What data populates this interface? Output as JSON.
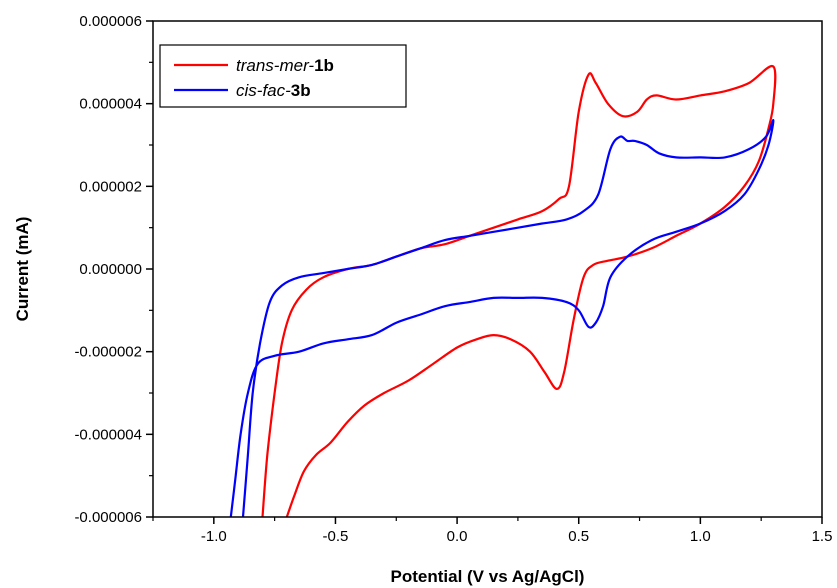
{
  "chart_data": {
    "type": "line",
    "title": "",
    "xlabel": "Potential (V vs Ag/AgCl)",
    "ylabel": "Current (mA)",
    "xlim": [
      -1.25,
      1.5
    ],
    "ylim": [
      -6e-06,
      6e-06
    ],
    "x_ticks": [
      -1.0,
      -0.5,
      0.0,
      0.5,
      1.0,
      1.5
    ],
    "x_tick_labels": [
      "-1.0",
      "-0.5",
      "0.0",
      "0.5",
      "1.0",
      "1.5"
    ],
    "y_ticks": [
      -6e-06,
      -4e-06,
      -2e-06,
      0.0,
      2e-06,
      4e-06,
      6e-06
    ],
    "y_tick_labels": [
      "-0.000006",
      "-0.000004",
      "-0.000002",
      "0.000000",
      "0.000002",
      "0.000004",
      "0.000006"
    ],
    "grid": false,
    "legend_position": "top-left",
    "series": [
      {
        "name_parts": [
          {
            "text": "trans-mer-",
            "style": "italic"
          },
          {
            "text": "1b",
            "style": "bold"
          }
        ],
        "color": "#ff0000",
        "points": [
          [
            -0.7,
            -6e-06
          ],
          [
            -0.67,
            -5.5e-06
          ],
          [
            -0.63,
            -4.9e-06
          ],
          [
            -0.58,
            -4.5e-06
          ],
          [
            -0.52,
            -4.2e-06
          ],
          [
            -0.45,
            -3.7e-06
          ],
          [
            -0.38,
            -3.3e-06
          ],
          [
            -0.3,
            -3e-06
          ],
          [
            -0.2,
            -2.7e-06
          ],
          [
            -0.1,
            -2.3e-06
          ],
          [
            0.0,
            -1.9e-06
          ],
          [
            0.08,
            -1.7e-06
          ],
          [
            0.15,
            -1.6e-06
          ],
          [
            0.22,
            -1.7e-06
          ],
          [
            0.3,
            -2e-06
          ],
          [
            0.36,
            -2.5e-06
          ],
          [
            0.41,
            -2.9e-06
          ],
          [
            0.44,
            -2.5e-06
          ],
          [
            0.48,
            -1.2e-06
          ],
          [
            0.52,
            -2e-07
          ],
          [
            0.56,
            1e-07
          ],
          [
            0.62,
            2e-07
          ],
          [
            0.7,
            3e-07
          ],
          [
            0.8,
            5e-07
          ],
          [
            0.9,
            8e-07
          ],
          [
            1.0,
            1.1e-06
          ],
          [
            1.1,
            1.5e-06
          ],
          [
            1.18,
            2e-06
          ],
          [
            1.24,
            2.6e-06
          ],
          [
            1.28,
            3.4e-06
          ],
          [
            1.3,
            4e-06
          ],
          [
            1.3,
            4.9e-06
          ],
          [
            1.2,
            4.5e-06
          ],
          [
            1.1,
            4.3e-06
          ],
          [
            1.0,
            4.2e-06
          ],
          [
            0.9,
            4.1e-06
          ],
          [
            0.82,
            4.2e-06
          ],
          [
            0.78,
            4.1e-06
          ],
          [
            0.74,
            3.8e-06
          ],
          [
            0.68,
            3.7e-06
          ],
          [
            0.62,
            4e-06
          ],
          [
            0.57,
            4.5e-06
          ],
          [
            0.54,
            4.7e-06
          ],
          [
            0.5,
            3.8e-06
          ],
          [
            0.46,
            2e-06
          ],
          [
            0.42,
            1.7e-06
          ],
          [
            0.35,
            1.4e-06
          ],
          [
            0.25,
            1.2e-06
          ],
          [
            0.15,
            1e-06
          ],
          [
            0.05,
            8e-07
          ],
          [
            -0.05,
            6e-07
          ],
          [
            -0.15,
            5e-07
          ],
          [
            -0.25,
            3e-07
          ],
          [
            -0.35,
            1e-07
          ],
          [
            -0.45,
            0.0
          ],
          [
            -0.55,
            -2e-07
          ],
          [
            -0.62,
            -5e-07
          ],
          [
            -0.68,
            -1e-06
          ],
          [
            -0.72,
            -1.8e-06
          ],
          [
            -0.75,
            -3e-06
          ],
          [
            -0.78,
            -4.5e-06
          ],
          [
            -0.8,
            -6e-06
          ]
        ]
      },
      {
        "name_parts": [
          {
            "text": "cis-fac-",
            "style": "italic"
          },
          {
            "text": "3b",
            "style": "bold"
          }
        ],
        "color": "#0000ff",
        "points": [
          [
            -0.93,
            -6e-06
          ],
          [
            -0.91,
            -5e-06
          ],
          [
            -0.89,
            -4e-06
          ],
          [
            -0.86,
            -3e-06
          ],
          [
            -0.82,
            -2.3e-06
          ],
          [
            -0.75,
            -2.1e-06
          ],
          [
            -0.65,
            -2e-06
          ],
          [
            -0.55,
            -1.8e-06
          ],
          [
            -0.45,
            -1.7e-06
          ],
          [
            -0.35,
            -1.6e-06
          ],
          [
            -0.25,
            -1.3e-06
          ],
          [
            -0.15,
            -1.1e-06
          ],
          [
            -0.05,
            -9e-07
          ],
          [
            0.05,
            -8e-07
          ],
          [
            0.15,
            -7e-07
          ],
          [
            0.25,
            -7e-07
          ],
          [
            0.35,
            -7e-07
          ],
          [
            0.45,
            -8e-07
          ],
          [
            0.5,
            -1e-06
          ],
          [
            0.54,
            -1.4e-06
          ],
          [
            0.57,
            -1.3e-06
          ],
          [
            0.6,
            -9e-07
          ],
          [
            0.63,
            -2e-07
          ],
          [
            0.7,
            3e-07
          ],
          [
            0.8,
            7e-07
          ],
          [
            0.9,
            9e-07
          ],
          [
            1.0,
            1.1e-06
          ],
          [
            1.1,
            1.4e-06
          ],
          [
            1.18,
            1.8e-06
          ],
          [
            1.24,
            2.4e-06
          ],
          [
            1.28,
            3e-06
          ],
          [
            1.3,
            3.6e-06
          ],
          [
            1.27,
            3.2e-06
          ],
          [
            1.2,
            2.9e-06
          ],
          [
            1.1,
            2.7e-06
          ],
          [
            1.0,
            2.7e-06
          ],
          [
            0.9,
            2.7e-06
          ],
          [
            0.83,
            2.8e-06
          ],
          [
            0.78,
            3e-06
          ],
          [
            0.73,
            3.1e-06
          ],
          [
            0.7,
            3.1e-06
          ],
          [
            0.67,
            3.2e-06
          ],
          [
            0.63,
            2.9e-06
          ],
          [
            0.58,
            1.8e-06
          ],
          [
            0.52,
            1.4e-06
          ],
          [
            0.45,
            1.2e-06
          ],
          [
            0.35,
            1.1e-06
          ],
          [
            0.25,
            1e-06
          ],
          [
            0.15,
            9e-07
          ],
          [
            0.05,
            8e-07
          ],
          [
            -0.05,
            7e-07
          ],
          [
            -0.15,
            5e-07
          ],
          [
            -0.25,
            3e-07
          ],
          [
            -0.35,
            1e-07
          ],
          [
            -0.45,
            0.0
          ],
          [
            -0.55,
            -1e-07
          ],
          [
            -0.65,
            -2e-07
          ],
          [
            -0.72,
            -4e-07
          ],
          [
            -0.77,
            -8e-07
          ],
          [
            -0.81,
            -1.8e-06
          ],
          [
            -0.84,
            -3e-06
          ],
          [
            -0.86,
            -4.5e-06
          ],
          [
            -0.88,
            -6e-06
          ]
        ]
      }
    ]
  }
}
